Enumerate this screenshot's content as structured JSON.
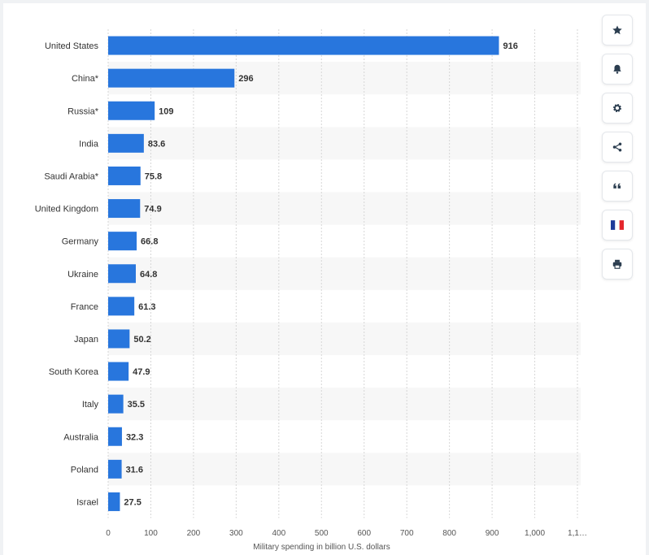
{
  "toolbar": {
    "buttons": [
      {
        "icon": "star-icon"
      },
      {
        "icon": "bell-icon"
      },
      {
        "icon": "gear-icon"
      },
      {
        "icon": "share-icon"
      },
      {
        "icon": "quote-icon"
      },
      {
        "icon": "french-flag-icon"
      },
      {
        "icon": "print-icon"
      }
    ]
  },
  "chart_data": {
    "type": "bar",
    "orientation": "horizontal",
    "categories": [
      "United States",
      "China*",
      "Russia*",
      "India",
      "Saudi Arabia*",
      "United Kingdom",
      "Germany",
      "Ukraine",
      "France",
      "Japan",
      "South Korea",
      "Italy",
      "Australia",
      "Poland",
      "Israel"
    ],
    "values": [
      916,
      296,
      109,
      83.6,
      75.8,
      74.9,
      66.8,
      64.8,
      61.3,
      50.2,
      47.9,
      35.5,
      32.3,
      31.6,
      27.5
    ],
    "value_labels": [
      "916",
      "296",
      "109",
      "83.6",
      "75.8",
      "74.9",
      "66.8",
      "64.8",
      "61.3",
      "50.2",
      "47.9",
      "35.5",
      "32.3",
      "31.6",
      "27.5"
    ],
    "x_ticks": [
      "0",
      "100",
      "200",
      "300",
      "400",
      "500",
      "600",
      "700",
      "800",
      "900",
      "1,000",
      "1,1…"
    ],
    "xlabel": "Military spending in billion U.S. dollars",
    "xlim": [
      0,
      1100
    ],
    "grid": "vertical dashed",
    "bar_color": "#2876dd",
    "stripe_color": "#f7f7f7"
  }
}
